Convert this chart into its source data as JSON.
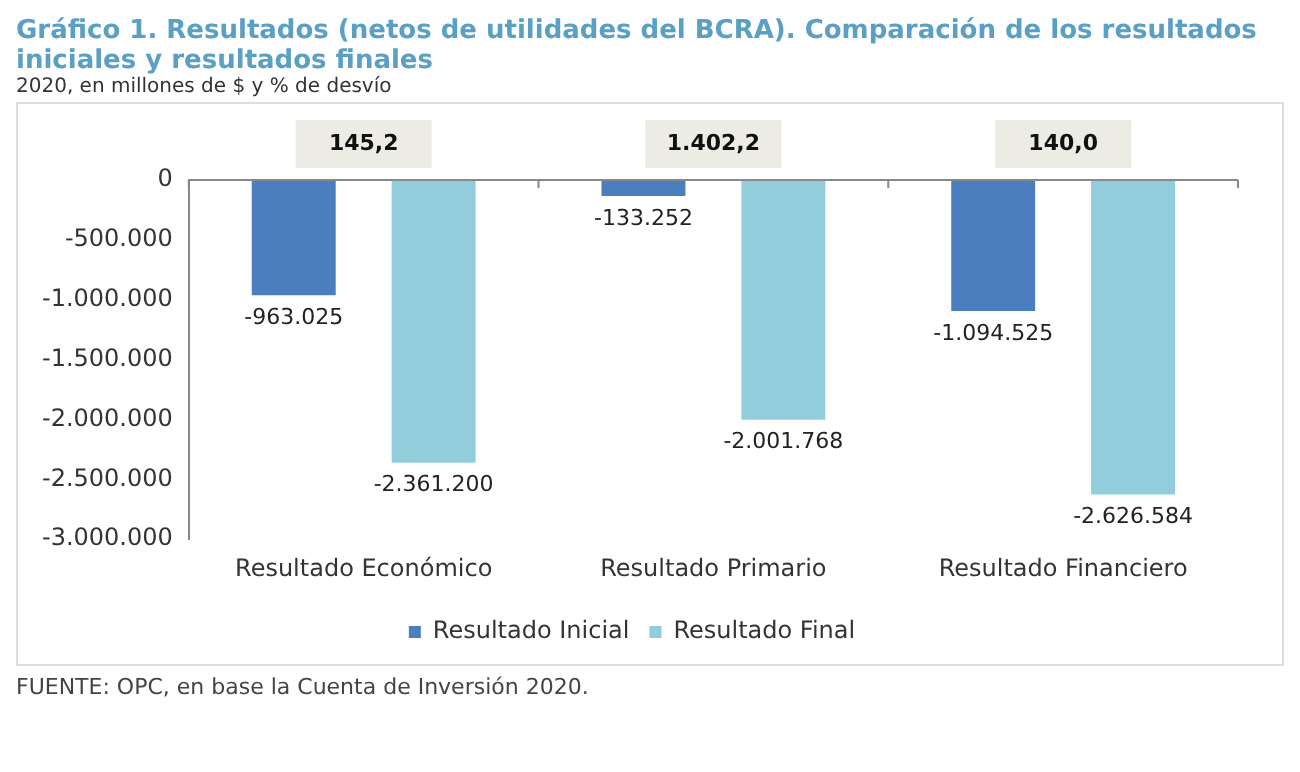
{
  "chart_data": {
    "type": "bar",
    "title": "Gráfico 1. Resultados (netos de utilidades del BCRA). Comparación de los resultados iniciales y resultados finales",
    "subtitle": "2020, en millones de $ y % de desvío",
    "categories": [
      "Resultado Económico",
      "Resultado Primario",
      "Resultado Financiero"
    ],
    "series": [
      {
        "name": "Resultado Inicial",
        "color": "#4a7ebf",
        "values": [
          -963025,
          -133252,
          -1094525
        ],
        "value_labels": [
          "-963.025",
          "-133.252",
          "-1.094.525"
        ]
      },
      {
        "name": "Resultado Final",
        "color": "#92cddc",
        "values": [
          -2361200,
          -2001768,
          -2626584
        ],
        "value_labels": [
          "-2.361.200",
          "-2.001.768",
          "-2.626.584"
        ]
      }
    ],
    "ylim": [
      -3000000,
      0
    ],
    "yticks": [
      {
        "value": -3000000,
        "label": "-3.000.000"
      },
      {
        "value": -2500000,
        "label": "-2.500.000"
      },
      {
        "value": -2000000,
        "label": "-2.000.000"
      },
      {
        "value": -1500000,
        "label": "-1.500.000"
      },
      {
        "value": -1000000,
        "label": "-1.000.000"
      },
      {
        "value": -500000,
        "label": "-500.000"
      },
      0
    ],
    "legend": "bottom",
    "grid": false,
    "annotations": [
      "145,2",
      "1.402,2",
      "140,0",
      "FUENTE: OPC, en base la Cuenta de Inversión 2020."
    ]
  }
}
